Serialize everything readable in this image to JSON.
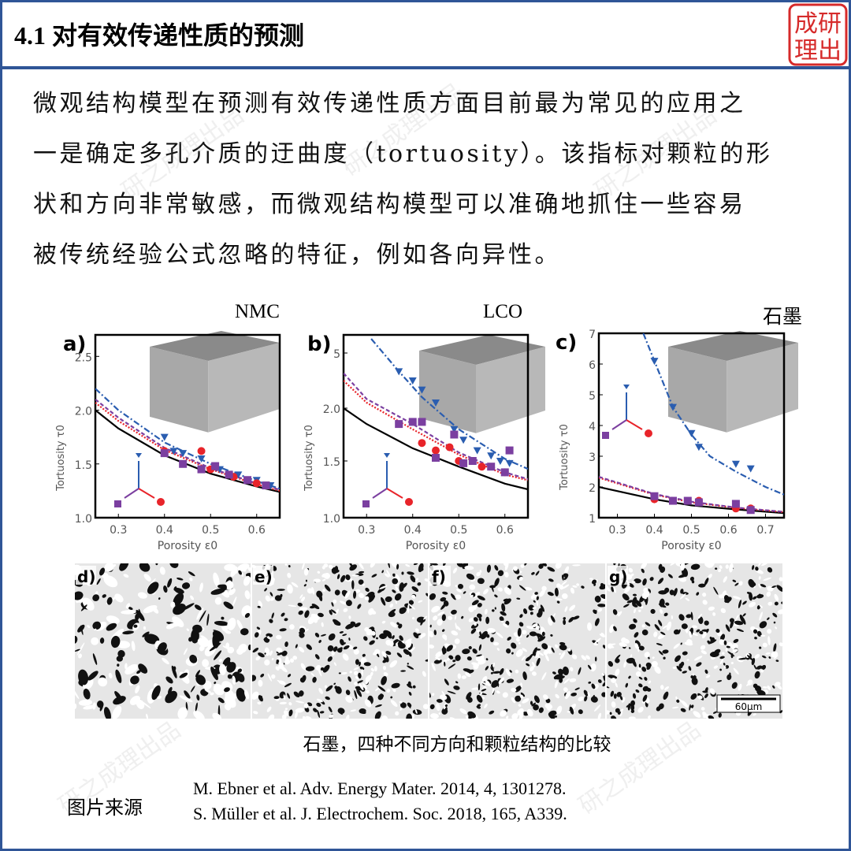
{
  "header": {
    "title": "4.1 对有效传递性质的预测",
    "seal_text": "研之成理"
  },
  "paragraph": [
    "微观结构模型在预测有效传递性质方面目前最为常见的应用之",
    "一是确定多孔介质的迂曲度（tortuosity）。该指标对颗粒的形",
    "状和方向非常敏感，而微观结构模型可以准确地抓住一些容易",
    "被传统经验公式忽略的特征，例如各向异性。"
  ],
  "materials": [
    "NMC",
    "LCO",
    "石墨"
  ],
  "watermark": "研之成理出品",
  "colors": {
    "frame": "#2f5597",
    "blue": "#2a5db0",
    "red": "#e8242a",
    "purple": "#7b3fa0",
    "black": "#000000"
  },
  "chart_data": [
    {
      "type": "line+scatter",
      "panel": "a)",
      "xlabel": "Porosity ε0",
      "ylabel": "Tortuosity τ0",
      "xlim": [
        0.25,
        0.65
      ],
      "ylim": [
        1.0,
        2.7
      ],
      "xticks": [
        "0.3",
        "0.4",
        "0.5",
        "0.6"
      ],
      "yticks": [
        "1.0",
        "1.5",
        "2.0",
        "2.5"
      ],
      "curves": [
        {
          "color": "black",
          "style": "solid",
          "points": [
            [
              0.25,
              2.0
            ],
            [
              0.3,
              1.83
            ],
            [
              0.4,
              1.58
            ],
            [
              0.5,
              1.41
            ],
            [
              0.6,
              1.29
            ],
            [
              0.65,
              1.24
            ]
          ]
        },
        {
          "color": "blue",
          "style": "dashdot",
          "points": [
            [
              0.25,
              2.2
            ],
            [
              0.3,
              2.0
            ],
            [
              0.4,
              1.7
            ],
            [
              0.5,
              1.5
            ],
            [
              0.6,
              1.34
            ],
            [
              0.65,
              1.27
            ]
          ]
        },
        {
          "color": "red",
          "style": "dotted",
          "points": [
            [
              0.25,
              2.07
            ],
            [
              0.3,
              1.9
            ],
            [
              0.4,
              1.63
            ],
            [
              0.5,
              1.45
            ],
            [
              0.6,
              1.31
            ],
            [
              0.65,
              1.25
            ]
          ]
        },
        {
          "color": "purple",
          "style": "dashed",
          "points": [
            [
              0.25,
              2.1
            ],
            [
              0.3,
              1.93
            ],
            [
              0.4,
              1.65
            ],
            [
              0.5,
              1.46
            ],
            [
              0.6,
              1.32
            ],
            [
              0.65,
              1.26
            ]
          ]
        }
      ],
      "scatter": [
        {
          "color": "blue",
          "marker": "triangle",
          "points": [
            [
              0.4,
              1.75
            ],
            [
              0.42,
              1.62
            ],
            [
              0.44,
              1.6
            ],
            [
              0.48,
              1.55
            ],
            [
              0.52,
              1.45
            ],
            [
              0.56,
              1.4
            ],
            [
              0.6,
              1.35
            ],
            [
              0.63,
              1.3
            ]
          ]
        },
        {
          "color": "red",
          "marker": "circle",
          "points": [
            [
              0.4,
              1.62
            ],
            [
              0.48,
              1.62
            ],
            [
              0.5,
              1.45
            ],
            [
              0.55,
              1.38
            ],
            [
              0.6,
              1.32
            ]
          ]
        },
        {
          "color": "purple",
          "marker": "square",
          "points": [
            [
              0.4,
              1.6
            ],
            [
              0.44,
              1.5
            ],
            [
              0.48,
              1.45
            ],
            [
              0.51,
              1.48
            ],
            [
              0.54,
              1.4
            ],
            [
              0.58,
              1.35
            ],
            [
              0.62,
              1.3
            ]
          ]
        }
      ]
    },
    {
      "type": "line+scatter",
      "panel": "b)",
      "xlabel": "Porosity ε0",
      "ylabel": "Tortuosity τ0",
      "xlim": [
        0.25,
        0.65
      ],
      "ylim": [
        1.0,
        6
      ],
      "xticks": [
        "0.3",
        "0.4",
        "0.5",
        "0.6"
      ],
      "yticks": [
        "1.0",
        "1.5",
        "2.0",
        "5"
      ],
      "curves": [
        {
          "color": "black",
          "style": "solid",
          "points": [
            [
              0.25,
              2.0
            ],
            [
              0.3,
              1.85
            ],
            [
              0.4,
              1.62
            ],
            [
              0.5,
              1.45
            ],
            [
              0.6,
              1.3
            ],
            [
              0.65,
              1.25
            ]
          ]
        },
        {
          "color": "blue",
          "style": "dashdot",
          "points": [
            [
              0.31,
              6
            ],
            [
              0.37,
              4
            ],
            [
              0.42,
              2.6
            ],
            [
              0.5,
              1.8
            ],
            [
              0.6,
              1.52
            ],
            [
              0.65,
              1.43
            ]
          ]
        },
        {
          "color": "red",
          "style": "dotted",
          "points": [
            [
              0.25,
              3.5
            ],
            [
              0.3,
              2.3
            ],
            [
              0.4,
              1.8
            ],
            [
              0.5,
              1.56
            ],
            [
              0.6,
              1.38
            ],
            [
              0.65,
              1.33
            ]
          ]
        },
        {
          "color": "purple",
          "style": "dashed",
          "points": [
            [
              0.25,
              3.9
            ],
            [
              0.3,
              2.5
            ],
            [
              0.4,
              1.85
            ],
            [
              0.5,
              1.58
            ],
            [
              0.6,
              1.4
            ],
            [
              0.65,
              1.34
            ]
          ]
        }
      ],
      "scatter": [
        {
          "color": "blue",
          "marker": "triangle",
          "points": [
            [
              0.37,
              4
            ],
            [
              0.4,
              3.5
            ],
            [
              0.42,
              3
            ],
            [
              0.45,
              2.3
            ],
            [
              0.49,
              1.8
            ],
            [
              0.51,
              1.7
            ],
            [
              0.54,
              1.6
            ],
            [
              0.57,
              1.55
            ],
            [
              0.59,
              1.5
            ],
            [
              0.61,
              1.48
            ]
          ]
        },
        {
          "color": "red",
          "marker": "circle",
          "points": [
            [
              0.42,
              1.67
            ],
            [
              0.45,
              1.6
            ],
            [
              0.48,
              1.63
            ],
            [
              0.5,
              1.5
            ],
            [
              0.55,
              1.45
            ],
            [
              0.6,
              1.4
            ]
          ]
        },
        {
          "color": "purple",
          "marker": "square",
          "points": [
            [
              0.37,
              1.85
            ],
            [
              0.4,
              1.87
            ],
            [
              0.42,
              1.87
            ],
            [
              0.45,
              1.53
            ],
            [
              0.49,
              1.75
            ],
            [
              0.51,
              1.48
            ],
            [
              0.53,
              1.5
            ],
            [
              0.57,
              1.45
            ],
            [
              0.6,
              1.4
            ],
            [
              0.61,
              1.6
            ]
          ]
        }
      ]
    },
    {
      "type": "line+scatter",
      "panel": "c)",
      "xlabel": "Porosity ε0",
      "ylabel": "Tortuosity τ0",
      "xlim": [
        0.25,
        0.75
      ],
      "ylim": [
        1,
        7
      ],
      "xticks": [
        "0.3",
        "0.4",
        "0.5",
        "0.6",
        "0.7"
      ],
      "yticks": [
        "1",
        "2",
        "3",
        "4",
        "5",
        "6",
        "7"
      ],
      "curves": [
        {
          "color": "black",
          "style": "solid",
          "points": [
            [
              0.25,
              2.0
            ],
            [
              0.4,
              1.6
            ],
            [
              0.5,
              1.4
            ],
            [
              0.62,
              1.27
            ],
            [
              0.75,
              1.15
            ]
          ]
        },
        {
          "color": "blue",
          "style": "dashdot",
          "points": [
            [
              0.37,
              7
            ],
            [
              0.4,
              6.1
            ],
            [
              0.45,
              4.6
            ],
            [
              0.5,
              3.7
            ],
            [
              0.55,
              3.0
            ],
            [
              0.62,
              2.5
            ],
            [
              0.7,
              2.0
            ],
            [
              0.75,
              1.75
            ]
          ]
        },
        {
          "color": "red",
          "style": "dotted",
          "points": [
            [
              0.25,
              2.3
            ],
            [
              0.4,
              1.75
            ],
            [
              0.5,
              1.5
            ],
            [
              0.62,
              1.32
            ],
            [
              0.75,
              1.18
            ]
          ]
        },
        {
          "color": "purple",
          "style": "dashed",
          "points": [
            [
              0.25,
              2.33
            ],
            [
              0.4,
              1.77
            ],
            [
              0.5,
              1.52
            ],
            [
              0.62,
              1.33
            ],
            [
              0.75,
              1.19
            ]
          ]
        }
      ],
      "scatter": [
        {
          "color": "blue",
          "marker": "triangle",
          "points": [
            [
              0.4,
              6.1
            ],
            [
              0.45,
              4.6
            ],
            [
              0.5,
              3.75
            ],
            [
              0.52,
              3.3
            ],
            [
              0.62,
              2.75
            ],
            [
              0.66,
              2.6
            ]
          ]
        },
        {
          "color": "red",
          "marker": "circle",
          "points": [
            [
              0.4,
              1.6
            ],
            [
              0.52,
              1.55
            ],
            [
              0.62,
              1.3
            ],
            [
              0.66,
              1.3
            ]
          ]
        },
        {
          "color": "purple",
          "marker": "square",
          "points": [
            [
              0.4,
              1.7
            ],
            [
              0.45,
              1.55
            ],
            [
              0.49,
              1.55
            ],
            [
              0.52,
              1.5
            ],
            [
              0.62,
              1.45
            ],
            [
              0.66,
              1.25
            ]
          ]
        }
      ]
    }
  ],
  "micrographs": {
    "panels": [
      "d)",
      "e)",
      "f)",
      "g)"
    ],
    "scale_bar": "60µm"
  },
  "caption": "石墨，四种不同方向和颗粒结构的比较",
  "source": {
    "label": "图片来源",
    "refs": [
      "M. Ebner et al. Adv. Energy Mater. 2014, 4, 1301278.",
      "S. Müller et al. J. Electrochem. Soc. 2018, 165, A339."
    ]
  }
}
